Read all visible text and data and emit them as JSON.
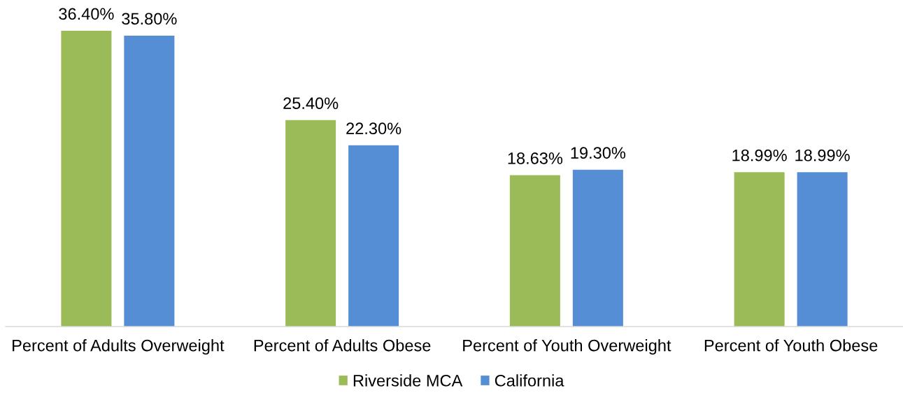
{
  "chart_data": {
    "type": "bar",
    "categories": [
      "Percent of Adults Overweight",
      "Percent of Adults Obese",
      "Percent of Youth Overweight",
      "Percent of Youth Obese"
    ],
    "series": [
      {
        "name": "Riverside MCA",
        "color": "#9bbb59",
        "values": [
          36.4,
          25.4,
          18.63,
          18.99
        ],
        "value_labels": [
          "36.40%",
          "25.40%",
          "18.63%",
          "18.99%"
        ]
      },
      {
        "name": "California",
        "color": "#558ed5",
        "values": [
          35.8,
          22.3,
          19.3,
          18.99
        ],
        "value_labels": [
          "35.80%",
          "22.30%",
          "19.30%",
          "18.99%"
        ]
      }
    ],
    "legend": "bottom",
    "grid": false,
    "tick_labels": "x"
  }
}
